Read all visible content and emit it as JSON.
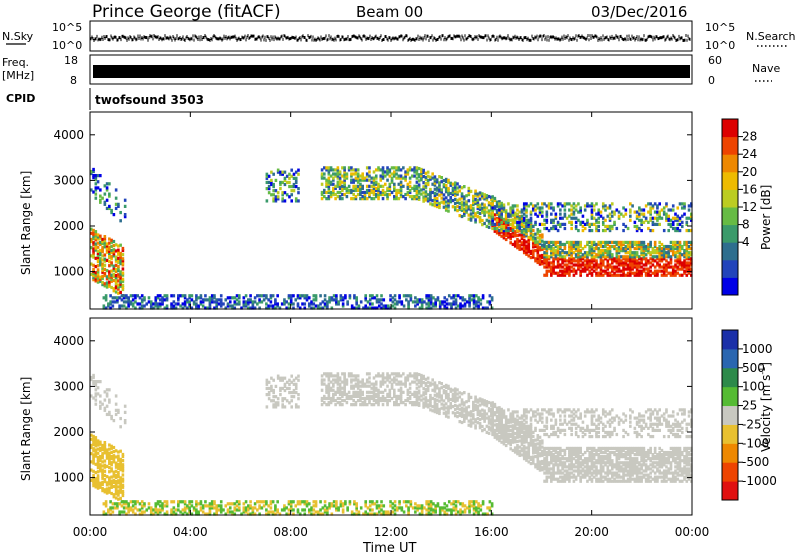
{
  "header": {
    "station": "Prince George (fitACF)",
    "beam": "Beam 00",
    "date": "03/Dec/2016"
  },
  "chart_data": [
    {
      "type": "line",
      "panel": "nsky-nsearch",
      "left_label": "N.Sky",
      "right_label": "N.Search",
      "left_ticks": [
        "10^5",
        "10^0"
      ],
      "right_ticks": [
        "10^5",
        "10^0"
      ]
    },
    {
      "type": "bar",
      "panel": "freq-nave",
      "left_label_top": "Freq.",
      "left_label_unit": "[MHz]",
      "left_ticks": [
        "18",
        "8"
      ],
      "right_label": "Nave",
      "right_ticks": [
        "60",
        "0"
      ]
    },
    {
      "type": "table",
      "panel": "cpid",
      "label": "CPID",
      "mode": "twofsound 3503"
    },
    {
      "type": "heatmap",
      "panel": "power",
      "ylabel": "Slant Range [km]",
      "y_ticks": [
        "1000",
        "2000",
        "3000",
        "4000"
      ],
      "yrange": [
        180,
        4500
      ],
      "colorbar_label": "Power [dB]",
      "colorbar_ticks": [
        "28",
        "24",
        "20",
        "16",
        "12",
        "8",
        "4"
      ],
      "colorbar_colors": [
        "#0000e6",
        "#2244bb",
        "#2e6e8e",
        "#3a9a6a",
        "#66bb44",
        "#bbcc22",
        "#eebb00",
        "#ee8800",
        "#ee4400",
        "#dd0000"
      ]
    },
    {
      "type": "heatmap",
      "panel": "velocity",
      "ylabel": "Slant Range [km]",
      "y_ticks": [
        "1000",
        "2000",
        "3000",
        "4000"
      ],
      "yrange": [
        180,
        4500
      ],
      "colorbar_label": "Velocity [m s",
      "colorbar_sup": "-1",
      "colorbar_label_end": "]",
      "colorbar_ticks": [
        "1000",
        "500",
        "100",
        "25",
        "-25",
        "-100",
        "-500",
        "-1000"
      ],
      "colorbar_colors": [
        "#1a2fa8",
        "#2a66b0",
        "#2d8a4a",
        "#55bb33",
        "#c8c8c0",
        "#e8c030",
        "#ee8800",
        "#ee4400",
        "#e01010"
      ]
    }
  ],
  "x_axis": {
    "xlabel": "Time UT",
    "ticks": [
      "00:00",
      "04:00",
      "08:00",
      "12:00",
      "16:00",
      "20:00",
      "00:00"
    ]
  }
}
